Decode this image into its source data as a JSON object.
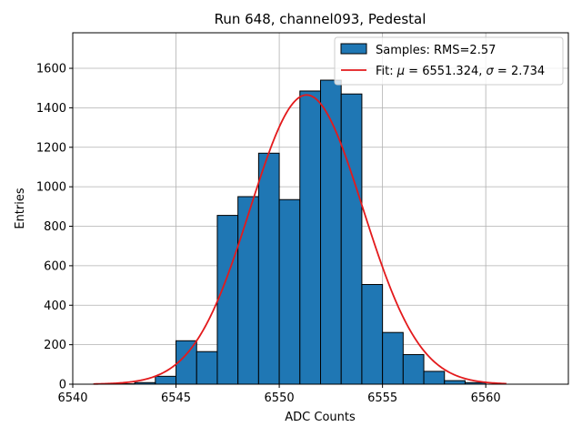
{
  "chart_data": {
    "type": "bar",
    "title": "Run 648, channel093, Pedestal",
    "xlabel": "ADC Counts",
    "ylabel": "Entries",
    "xlim": [
      6540,
      6564
    ],
    "ylim": [
      0,
      1780
    ],
    "xticks": [
      6540,
      6545,
      6550,
      6555,
      6560
    ],
    "yticks": [
      0,
      200,
      400,
      600,
      800,
      1000,
      1200,
      1400,
      1600
    ],
    "grid": true,
    "legend_position": "top-right",
    "bar_color": "#1f77b4",
    "fit_color": "#e31a1c",
    "histogram": {
      "name": "Samples: RMS=2.57",
      "bin_edges": [
        6542,
        6543,
        6544,
        6545,
        6546,
        6547,
        6548,
        6549,
        6550,
        6551,
        6552,
        6553,
        6554,
        6555,
        6556,
        6557,
        6558,
        6559,
        6560
      ],
      "values": [
        2,
        8,
        40,
        220,
        165,
        855,
        950,
        1170,
        935,
        1485,
        1540,
        1470,
        505,
        262,
        150,
        65,
        18,
        8
      ]
    },
    "fit": {
      "name": "Fit: μ = 6551.324, σ = 2.734",
      "label_prefix": "Fit: ",
      "mu_symbol": "μ",
      "sigma_symbol": "σ",
      "mu": 6551.324,
      "sigma": 2.734,
      "amplitude": 1465,
      "x_range": [
        6541,
        6561
      ]
    }
  }
}
